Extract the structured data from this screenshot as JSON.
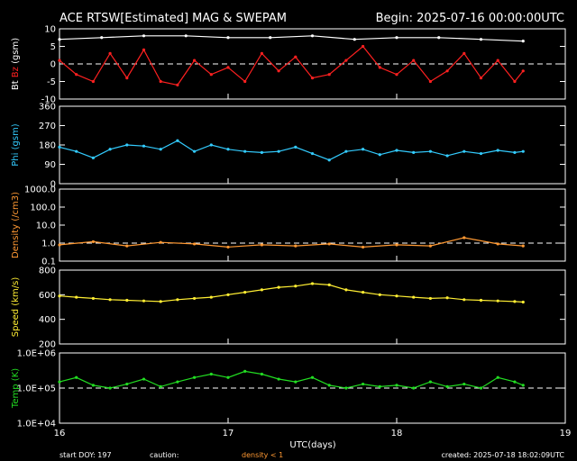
{
  "header": {
    "title": "ACE RTSW[Estimated] MAG & SWEPAM",
    "begin": "Begin: 2025-07-16 00:00:00UTC"
  },
  "footer": {
    "start_doy": "start DOY: 197",
    "caution": "caution:",
    "density_note": "density < 1",
    "created": "created: 2025-07-18 18:02:09UTC"
  },
  "xaxis": {
    "label": "UTC(days)",
    "ticks": [
      "16",
      "17",
      "18",
      "19"
    ]
  },
  "colors": {
    "bt": "#ffffff",
    "bz": "#ff2020",
    "phi": "#33ccff",
    "density": "#ff9933",
    "speed": "#ffee33",
    "temp": "#22dd22",
    "axis": "#ffffff"
  },
  "chart_data": [
    {
      "type": "scatter",
      "ylabel_parts": [
        {
          "text": "Bt",
          "color": "#ffffff"
        },
        {
          "text": "Bz",
          "color": "#ff2020"
        },
        {
          "text": "(gsm)",
          "color": "#ffffff"
        }
      ],
      "ylim": [
        -10,
        10
      ],
      "yscale": "linear",
      "yticks": [
        "10",
        "5",
        "0",
        "-5",
        "-10"
      ],
      "xlim": [
        16,
        19
      ],
      "ref_lines": [
        0
      ],
      "series": [
        {
          "name": "Bt",
          "color": "#ffffff",
          "x": [
            16.0,
            16.25,
            16.5,
            16.75,
            17.0,
            17.25,
            17.5,
            17.75,
            18.0,
            18.25,
            18.5,
            18.75
          ],
          "y": [
            7,
            7.5,
            8,
            8,
            7.5,
            7.5,
            8,
            7,
            7.5,
            7.5,
            7,
            6.5
          ]
        },
        {
          "name": "Bz",
          "color": "#ff2020",
          "x": [
            16.0,
            16.1,
            16.2,
            16.3,
            16.4,
            16.5,
            16.6,
            16.7,
            16.8,
            16.9,
            17.0,
            17.1,
            17.2,
            17.3,
            17.4,
            17.5,
            17.6,
            17.7,
            17.8,
            17.9,
            18.0,
            18.1,
            18.2,
            18.3,
            18.4,
            18.5,
            18.6,
            18.7,
            18.75
          ],
          "y": [
            1,
            -3,
            -5,
            3,
            -4,
            4,
            -5,
            -6,
            1,
            -3,
            -1,
            -5,
            3,
            -2,
            2,
            -4,
            -3,
            1,
            5,
            -1,
            -3,
            1,
            -5,
            -2,
            3,
            -4,
            1,
            -5,
            -2
          ]
        }
      ]
    },
    {
      "type": "scatter",
      "ylabel_parts": [
        {
          "text": "Phi (gsm)",
          "color": "#33ccff"
        }
      ],
      "ylim": [
        0,
        360
      ],
      "yscale": "linear",
      "yticks": [
        "360",
        "270",
        "180",
        "90",
        "0"
      ],
      "xlim": [
        16,
        19
      ],
      "ref_lines": [],
      "series": [
        {
          "name": "Phi",
          "color": "#33ccff",
          "x": [
            16.0,
            16.1,
            16.2,
            16.3,
            16.4,
            16.5,
            16.6,
            16.7,
            16.8,
            16.9,
            17.0,
            17.1,
            17.2,
            17.3,
            17.4,
            17.5,
            17.6,
            17.7,
            17.8,
            17.9,
            18.0,
            18.1,
            18.2,
            18.3,
            18.4,
            18.5,
            18.6,
            18.7,
            18.75
          ],
          "y": [
            170,
            150,
            120,
            160,
            180,
            175,
            160,
            200,
            150,
            180,
            160,
            150,
            145,
            150,
            170,
            140,
            110,
            150,
            160,
            135,
            155,
            145,
            150,
            130,
            150,
            140,
            155,
            145,
            150
          ]
        }
      ]
    },
    {
      "type": "scatter",
      "ylabel_parts": [
        {
          "text": "Density (/cm3)",
          "color": "#ff9933"
        }
      ],
      "ylim": [
        0.1,
        1000
      ],
      "yscale": "log",
      "yticks": [
        "1000.0",
        "100.0",
        "10.0",
        "1.0",
        "0.1"
      ],
      "xlim": [
        16,
        19
      ],
      "ref_lines": [
        1
      ],
      "series": [
        {
          "name": "Density",
          "color": "#ff9933",
          "x": [
            16.0,
            16.2,
            16.4,
            16.6,
            16.8,
            17.0,
            17.2,
            17.4,
            17.6,
            17.8,
            18.0,
            18.2,
            18.4,
            18.6,
            18.75
          ],
          "y": [
            0.8,
            1.2,
            0.7,
            1.1,
            0.9,
            0.6,
            0.8,
            0.7,
            0.9,
            0.6,
            0.8,
            0.7,
            2.0,
            0.9,
            0.7
          ]
        }
      ]
    },
    {
      "type": "scatter",
      "ylabel_parts": [
        {
          "text": "Speed (km/s)",
          "color": "#ffee33"
        }
      ],
      "ylim": [
        200,
        800
      ],
      "yscale": "linear",
      "yticks": [
        "800",
        "600",
        "400",
        "200"
      ],
      "xlim": [
        16,
        19
      ],
      "ref_lines": [],
      "series": [
        {
          "name": "Speed",
          "color": "#ffee33",
          "x": [
            16.0,
            16.1,
            16.2,
            16.3,
            16.4,
            16.5,
            16.6,
            16.7,
            16.8,
            16.9,
            17.0,
            17.1,
            17.2,
            17.3,
            17.4,
            17.5,
            17.6,
            17.7,
            17.8,
            17.9,
            18.0,
            18.1,
            18.2,
            18.3,
            18.4,
            18.5,
            18.6,
            18.7,
            18.75
          ],
          "y": [
            590,
            580,
            570,
            560,
            555,
            550,
            545,
            560,
            570,
            580,
            600,
            620,
            640,
            660,
            670,
            690,
            680,
            640,
            620,
            600,
            590,
            580,
            570,
            575,
            560,
            555,
            550,
            545,
            540
          ]
        }
      ]
    },
    {
      "type": "scatter",
      "ylabel_parts": [
        {
          "text": "Temp (K)",
          "color": "#22dd22"
        }
      ],
      "ylim": [
        10000,
        1000000
      ],
      "yscale": "log",
      "yticks": [
        "1.0E+06",
        "1.0E+05",
        "1.0E+04"
      ],
      "xlim": [
        16,
        19
      ],
      "ref_lines": [
        100000
      ],
      "series": [
        {
          "name": "Temp",
          "color": "#22dd22",
          "x": [
            16.0,
            16.1,
            16.2,
            16.3,
            16.4,
            16.5,
            16.6,
            16.7,
            16.8,
            16.9,
            17.0,
            17.1,
            17.2,
            17.3,
            17.4,
            17.5,
            17.6,
            17.7,
            17.8,
            17.9,
            18.0,
            18.1,
            18.2,
            18.3,
            18.4,
            18.5,
            18.6,
            18.7,
            18.75
          ],
          "y": [
            150000,
            200000,
            120000,
            100000,
            130000,
            180000,
            110000,
            150000,
            200000,
            250000,
            200000,
            300000,
            250000,
            180000,
            150000,
            200000,
            120000,
            100000,
            130000,
            110000,
            120000,
            100000,
            150000,
            110000,
            130000,
            100000,
            200000,
            150000,
            120000
          ]
        }
      ]
    }
  ]
}
